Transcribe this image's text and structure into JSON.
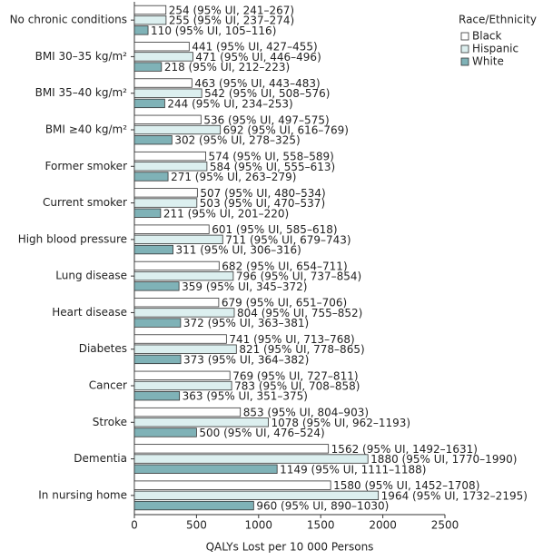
{
  "chart_data": {
    "type": "bar",
    "orientation": "horizontal",
    "categories": [
      "No chronic conditions",
      "BMI 30–35 kg/m²",
      "BMI 35–40 kg/m²",
      "BMI ≥40 kg/m²",
      "Former smoker",
      "Current smoker",
      "High blood pressure",
      "Lung disease",
      "Heart disease",
      "Diabetes",
      "Cancer",
      "Stroke",
      "Dementia",
      "In nursing home"
    ],
    "series": [
      {
        "name": "Black",
        "color": "#ffffff",
        "values": [
          254,
          441,
          463,
          536,
          574,
          507,
          601,
          682,
          679,
          741,
          769,
          853,
          1562,
          1580
        ],
        "value_labels": [
          "254 (95% UI, 241–267)",
          "441 (95% UI, 427–455)",
          "463 (95% UI, 443–483)",
          "536 (95% UI, 497–575)",
          "574 (95% UI, 558–589)",
          "507 (95% UI, 480–534)",
          "601 (95% UI, 585–618)",
          "682 (95% UI, 654–711)",
          "679 (95% UI, 651–706)",
          "741 (95% UI, 713–768)",
          "769 (95% UI, 727–811)",
          "853 (95% UI, 804–903)",
          "1562 (95% UI, 1492–1631)",
          "1580 (95% UI, 1452–1708)"
        ]
      },
      {
        "name": "Hispanic",
        "color": "#dcefef",
        "values": [
          255,
          471,
          542,
          692,
          584,
          503,
          711,
          796,
          804,
          821,
          783,
          1078,
          1880,
          1964
        ],
        "value_labels": [
          "255 (95% UI, 237–274)",
          "471 (95% UI, 446–496)",
          "542 (95% UI, 508–576)",
          "692 (95% UI, 616–769)",
          "584 (95% UI, 555–613)",
          "503 (95% UI, 470–537)",
          "711 (95% UI, 679–743)",
          "796 (95% UI, 737–854)",
          "804 (95% UI, 755–852)",
          "821 (95% UI, 778–865)",
          "783 (95% UI, 708–858)",
          "1078 (95% UI, 962–1193)",
          "1880 (95% UI, 1770–1990)",
          "1964 (95% UI, 1732–2195)"
        ]
      },
      {
        "name": "White",
        "color": "#7fb2b7",
        "values": [
          110,
          218,
          244,
          302,
          271,
          211,
          311,
          359,
          372,
          373,
          363,
          500,
          1149,
          960
        ],
        "value_labels": [
          "110 (95% UI, 105–116)",
          "218 (95% UI, 212–223)",
          "244 (95% UI, 234–253)",
          "302 (95% UI, 278–325)",
          "271 (95% UI, 263–279)",
          "211 (95% UI, 201–220)",
          "311 (95% UI, 306–316)",
          "359 (95% UI, 345–372)",
          "372 (95% UI, 363–381)",
          "373 (95% UI, 364–382)",
          "363 (95% UI, 351–375)",
          "500 (95% UI, 476–524)",
          "1149 (95% UI, 1111–1188)",
          "960 (95% UI, 890–1030)"
        ]
      }
    ],
    "xlim": [
      0,
      2500
    ],
    "xticks": [
      0,
      500,
      1000,
      1500,
      2000,
      2500
    ],
    "xlabel": "QALYs Lost per 10 000 Persons",
    "legend_title": "Race/Ethnicity",
    "legend": "top-right"
  }
}
